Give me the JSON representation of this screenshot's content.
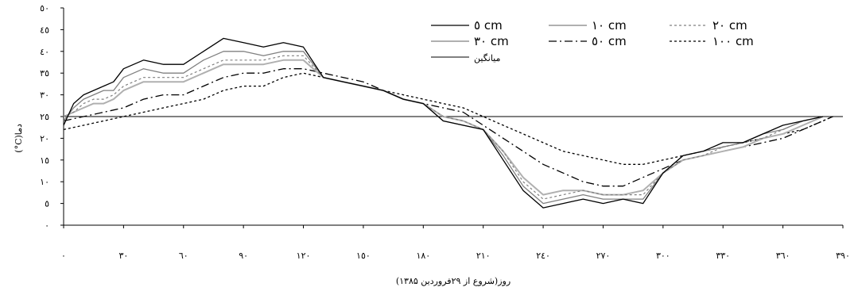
{
  "chart_data": {
    "type": "line",
    "title": "",
    "xlabel": "روز(شروع از ۲۹فروردین ۱۳۸۵)",
    "ylabel": "دما(C°)",
    "xlim": [
      0,
      390
    ],
    "ylim": [
      0,
      50
    ],
    "x_ticks": [
      0,
      30,
      60,
      90,
      120,
      150,
      180,
      210,
      240,
      270,
      300,
      330,
      360,
      390
    ],
    "x_tick_labels": [
      "٠",
      "٣٠",
      "٦٠",
      "٩٠",
      "١٢٠",
      "١٥٠",
      "١٨٠",
      "٢١٠",
      "٢٤٠",
      "٢٧٠",
      "٣٠٠",
      "٣٣٠",
      "٣٦٠",
      "٣٩٠"
    ],
    "y_ticks": [
      0,
      5,
      10,
      15,
      20,
      25,
      30,
      35,
      40,
      45,
      50
    ],
    "y_tick_labels": [
      "٠",
      "٥",
      "١٠",
      "١٥",
      "٢٠",
      "٢٥",
      "٣٠",
      "٣٥",
      "٤٠",
      "٤٥",
      "٥٠"
    ],
    "grid": false,
    "legend_position": "top-right",
    "series": [
      {
        "name": "٥ cm",
        "color": "#000000",
        "width": 1.3,
        "dash": "",
        "x": [
          0,
          5,
          10,
          15,
          20,
          25,
          30,
          40,
          50,
          60,
          70,
          80,
          90,
          100,
          110,
          120,
          130,
          140,
          150,
          160,
          170,
          180,
          190,
          200,
          210,
          220,
          230,
          240,
          250,
          260,
          270,
          280,
          290,
          300,
          310,
          320,
          330,
          340,
          350,
          360,
          370,
          380
        ],
        "y": [
          23,
          28,
          30,
          31,
          32,
          33,
          36,
          38,
          37,
          37,
          40,
          43,
          42,
          41,
          42,
          41,
          34,
          33,
          32,
          31,
          29,
          28,
          24,
          23,
          22,
          15,
          8,
          4,
          5,
          6,
          5,
          6,
          5,
          12,
          16,
          17,
          19,
          19,
          21,
          23,
          24,
          25
        ]
      },
      {
        "name": "١٠ cm",
        "color": "#808080",
        "width": 1.3,
        "dash": "",
        "x": [
          0,
          5,
          10,
          15,
          20,
          25,
          30,
          40,
          50,
          60,
          70,
          80,
          90,
          100,
          110,
          120,
          130,
          140,
          150,
          160,
          170,
          180,
          190,
          200,
          210,
          220,
          230,
          240,
          250,
          260,
          270,
          280,
          290,
          300,
          310,
          320,
          330,
          340,
          350,
          360,
          370,
          380
        ],
        "y": [
          24,
          27,
          29,
          30,
          31,
          31,
          34,
          36,
          35,
          35,
          38,
          40,
          40,
          39,
          40,
          40,
          34,
          33,
          32,
          31,
          29,
          28,
          24,
          23,
          22,
          16,
          9,
          5,
          6,
          7,
          6,
          6,
          6,
          12,
          16,
          17,
          18,
          19,
          21,
          22,
          24,
          25
        ]
      },
      {
        "name": "٢٠ cm",
        "color": "#808080",
        "width": 1.2,
        "dash": "3,3",
        "x": [
          0,
          5,
          10,
          15,
          20,
          25,
          30,
          40,
          50,
          60,
          70,
          80,
          90,
          100,
          110,
          120,
          130,
          140,
          150,
          160,
          170,
          180,
          190,
          200,
          210,
          220,
          230,
          240,
          250,
          260,
          270,
          280,
          290,
          300,
          310,
          320,
          330,
          340,
          350,
          360,
          370,
          380
        ],
        "y": [
          25,
          26,
          28,
          29,
          29,
          30,
          32,
          34,
          34,
          34,
          36,
          38,
          38,
          38,
          39,
          39,
          34,
          33,
          32,
          31,
          29,
          28,
          25,
          24,
          22,
          17,
          10,
          6,
          7,
          8,
          7,
          7,
          7,
          12,
          15,
          16,
          18,
          19,
          20,
          22,
          24,
          25
        ]
      },
      {
        "name": "٣٠ cm",
        "color": "#b0b0b0",
        "width": 2,
        "dash": "",
        "x": [
          0,
          5,
          10,
          15,
          20,
          25,
          30,
          40,
          50,
          60,
          70,
          80,
          90,
          100,
          110,
          120,
          130,
          140,
          150,
          160,
          170,
          180,
          190,
          200,
          210,
          220,
          230,
          240,
          250,
          260,
          270,
          280,
          290,
          300,
          310,
          320,
          330,
          340,
          350,
          360,
          370,
          380
        ],
        "y": [
          25,
          26,
          27,
          28,
          28,
          29,
          31,
          33,
          33,
          33,
          35,
          37,
          37,
          37,
          38,
          38,
          34,
          33,
          32,
          31,
          29,
          28,
          25,
          24,
          22,
          17,
          11,
          7,
          8,
          8,
          7,
          7,
          8,
          12,
          15,
          16,
          17,
          18,
          20,
          21,
          23,
          25
        ]
      },
      {
        "name": "٥٠ cm",
        "color": "#000000",
        "width": 1.3,
        "dash": "10,4,2,4",
        "x": [
          0,
          10,
          20,
          30,
          40,
          50,
          60,
          70,
          80,
          90,
          100,
          110,
          120,
          130,
          140,
          150,
          160,
          170,
          180,
          190,
          200,
          210,
          220,
          230,
          240,
          250,
          260,
          270,
          280,
          290,
          300,
          310,
          320,
          330,
          340,
          350,
          360,
          370,
          380,
          385
        ],
        "y": [
          24,
          25,
          26,
          27,
          29,
          30,
          30,
          32,
          34,
          35,
          35,
          36,
          36,
          35,
          34,
          33,
          31,
          29,
          28,
          27,
          26,
          23,
          20,
          17,
          14,
          12,
          10,
          9,
          9,
          11,
          13,
          15,
          16,
          17,
          18,
          19,
          20,
          22,
          24,
          25
        ]
      },
      {
        "name": "١٠٠ cm",
        "color": "#000000",
        "width": 1.3,
        "dash": "3,3",
        "x": [
          0,
          10,
          20,
          30,
          40,
          50,
          60,
          70,
          80,
          90,
          100,
          110,
          120,
          130,
          140,
          150,
          160,
          170,
          180,
          190,
          200,
          210,
          220,
          230,
          240,
          250,
          260,
          270,
          280,
          290,
          300,
          310,
          320,
          330,
          340,
          350,
          360,
          370,
          380,
          385
        ],
        "y": [
          22,
          23,
          24,
          25,
          26,
          27,
          28,
          29,
          31,
          32,
          32,
          34,
          35,
          34,
          33,
          32,
          31,
          30,
          29,
          28,
          27,
          25,
          23,
          21,
          19,
          17,
          16,
          15,
          14,
          14,
          15,
          16,
          17,
          18,
          19,
          20,
          21,
          22,
          24,
          25
        ]
      },
      {
        "name": "میانگین",
        "color": "#000000",
        "width": 1,
        "dash": "",
        "x": [
          0,
          390
        ],
        "y": [
          25,
          25
        ]
      }
    ]
  }
}
